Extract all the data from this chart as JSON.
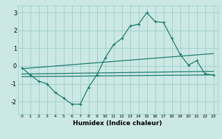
{
  "xlabel": "Humidex (Indice chaleur)",
  "ylabel": "",
  "bg_color": "#cce8e4",
  "grid_color": "#99cccc",
  "line_color": "#1a7a6e",
  "xlim": [
    -0.5,
    23.5
  ],
  "ylim": [
    -2.7,
    3.4
  ],
  "x_ticks": [
    0,
    1,
    2,
    3,
    4,
    5,
    6,
    7,
    8,
    9,
    10,
    11,
    12,
    13,
    14,
    15,
    16,
    17,
    18,
    19,
    20,
    21,
    22,
    23
  ],
  "y_ticks": [
    -2,
    -1,
    0,
    1,
    2,
    3
  ],
  "main_curve_x": [
    0,
    1,
    2,
    3,
    4,
    5,
    6,
    7,
    8,
    9,
    10,
    11,
    12,
    13,
    14,
    15,
    16,
    17,
    18,
    19,
    20,
    21,
    22,
    23
  ],
  "main_curve_y": [
    -0.1,
    -0.5,
    -0.85,
    -1.0,
    -1.5,
    -1.8,
    -2.15,
    -2.15,
    -1.2,
    -0.5,
    0.45,
    1.2,
    1.55,
    2.25,
    2.35,
    3.0,
    2.5,
    2.45,
    1.55,
    0.65,
    0.05,
    0.3,
    -0.45,
    -0.5
  ],
  "trend1_x": [
    0,
    23
  ],
  "trend1_y": [
    -0.15,
    0.7
  ],
  "trend2_x": [
    0,
    23
  ],
  "trend2_y": [
    -0.45,
    -0.3
  ],
  "trend3_x": [
    0,
    23
  ],
  "trend3_y": [
    -0.6,
    -0.5
  ]
}
